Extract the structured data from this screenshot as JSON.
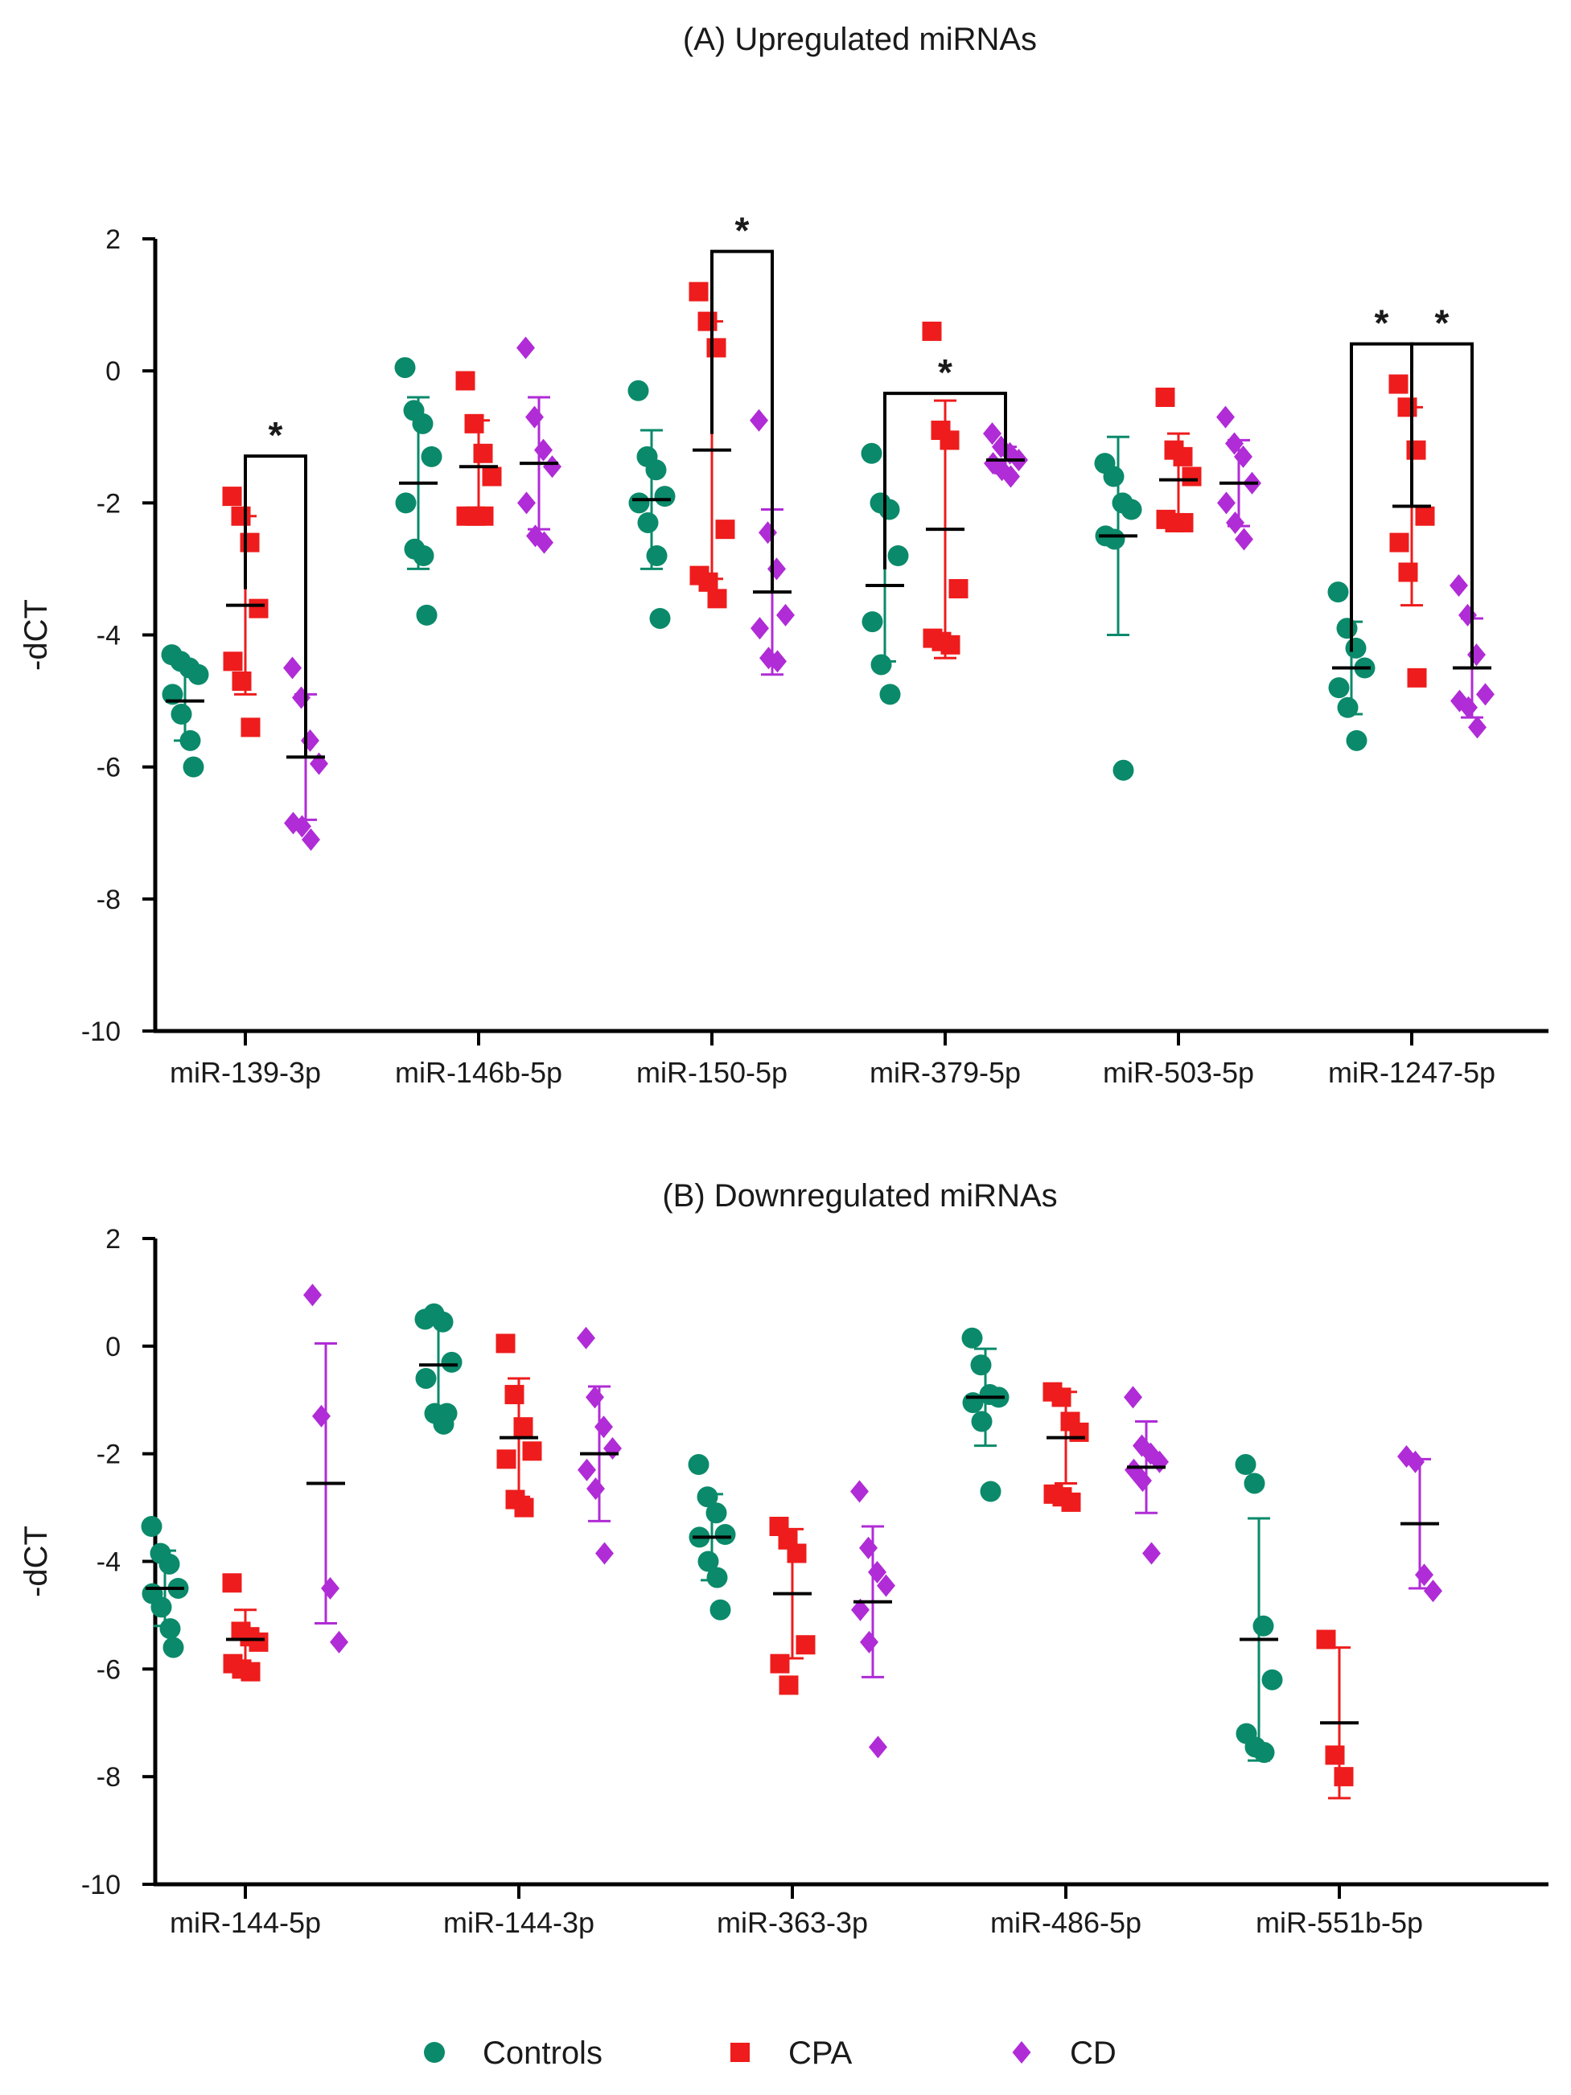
{
  "colors": {
    "Controls": "#0a8a6a",
    "CPA": "#ee1c1c",
    "CD": "#b02cd6",
    "axis": "#000000"
  },
  "legend": [
    {
      "name": "Controls",
      "marker": "circle"
    },
    {
      "name": "CPA",
      "marker": "square"
    },
    {
      "name": "CD",
      "marker": "diamond"
    }
  ],
  "chart_data": [
    {
      "type": "scatter",
      "title": "(A) Upregulated miRNAs",
      "ylabel": "-dCT",
      "ylim": [
        -10,
        2
      ],
      "yticks": [
        2,
        0,
        -2,
        -4,
        -6,
        -8,
        -10
      ],
      "categories": [
        "miR-139-3p",
        "miR-146b-5p",
        "miR-150-5p",
        "miR-379-5p",
        "miR-503-5p",
        "miR-1247-5p"
      ],
      "groups": [
        {
          "Controls": {
            "points": [
              -4.3,
              -4.4,
              -4.5,
              -4.6,
              -4.9,
              -5.2,
              -5.6,
              -6.0
            ],
            "mean": -5.0,
            "sd": 0.6
          },
          "CPA": {
            "points": [
              -1.9,
              -2.2,
              -2.6,
              -3.6,
              -4.4,
              -4.7,
              -5.4
            ],
            "mean": -3.55,
            "sd": 1.35
          },
          "CD": {
            "points": [
              -4.5,
              -4.95,
              -5.6,
              -5.95,
              -6.85,
              -6.9,
              -7.1
            ],
            "mean": -5.85,
            "sd": 0.95
          }
        },
        {
          "Controls": {
            "points": [
              0.05,
              -0.6,
              -0.8,
              -1.3,
              -2.0,
              -2.7,
              -2.8,
              -3.7
            ],
            "mean": -1.7,
            "sd": 1.3
          },
          "CPA": {
            "points": [
              -0.15,
              -0.8,
              -1.25,
              -1.6,
              -2.2,
              -2.2,
              -2.2
            ],
            "mean": -1.45,
            "sd": 0.7
          },
          "CD": {
            "points": [
              0.35,
              -0.7,
              -1.2,
              -1.45,
              -2.0,
              -2.5,
              -2.6
            ],
            "mean": -1.4,
            "sd": 1.0
          }
        },
        {
          "Controls": {
            "points": [
              -0.3,
              -1.3,
              -1.5,
              -1.9,
              -2.0,
              -2.3,
              -2.8,
              -3.75
            ],
            "mean": -1.95,
            "sd": 1.05
          },
          "CPA": {
            "points": [
              1.2,
              0.75,
              0.35,
              -2.4,
              -3.1,
              -3.2,
              -3.45
            ],
            "mean": -1.2,
            "sd": 1.95
          },
          "CD": {
            "points": [
              -0.75,
              -2.45,
              -3.0,
              -3.7,
              -3.9,
              -4.35,
              -4.4
            ],
            "mean": -3.35,
            "sd": 1.25
          }
        },
        {
          "Controls": {
            "points": [
              -1.25,
              -2.0,
              -2.1,
              -2.8,
              -3.8,
              -4.45,
              -4.9
            ],
            "mean": -3.25,
            "sd": 1.15
          },
          "CPA": {
            "points": [
              0.6,
              -0.9,
              -1.05,
              -3.3,
              -4.05,
              -4.1,
              -4.15
            ],
            "mean": -2.4,
            "sd": 1.95
          },
          "CD": {
            "points": [
              -0.95,
              -1.15,
              -1.25,
              -1.35,
              -1.4,
              -1.5,
              -1.6
            ],
            "mean": -1.35,
            "sd": 0.2
          }
        },
        {
          "Controls": {
            "points": [
              -1.4,
              -1.6,
              -2.0,
              -2.1,
              -2.5,
              -2.55,
              -6.05
            ],
            "mean": -2.5,
            "sd": 1.5
          },
          "CPA": {
            "points": [
              -0.4,
              -1.2,
              -1.3,
              -1.6,
              -2.25,
              -2.3,
              -2.3
            ],
            "mean": -1.65,
            "sd": 0.7
          },
          "CD": {
            "points": [
              -0.7,
              -1.1,
              -1.3,
              -1.7,
              -2.0,
              -2.3,
              -2.55
            ],
            "mean": -1.7,
            "sd": 0.65
          }
        },
        {
          "Controls": {
            "points": [
              -3.35,
              -3.9,
              -4.2,
              -4.5,
              -4.8,
              -5.1,
              -5.6
            ],
            "mean": -4.5,
            "sd": 0.7
          },
          "CPA": {
            "points": [
              -0.2,
              -0.55,
              -1.2,
              -2.2,
              -2.6,
              -3.05,
              -4.65
            ],
            "mean": -2.05,
            "sd": 1.5
          },
          "CD": {
            "points": [
              -3.25,
              -3.7,
              -4.3,
              -4.9,
              -5.0,
              -5.1,
              -5.4
            ],
            "mean": -4.5,
            "sd": 0.75
          }
        }
      ],
      "significance": [
        {
          "category": 0,
          "from": "CPA",
          "to": "CD",
          "label": "*"
        },
        {
          "category": 2,
          "from": "CPA",
          "to": "CD",
          "label": "*"
        },
        {
          "category": 3,
          "from": "Controls",
          "to": "CD",
          "label": "*"
        },
        {
          "category": 5,
          "from": "Controls",
          "to": "CPA",
          "label": "*"
        },
        {
          "category": 5,
          "from": "CPA",
          "to": "CD",
          "label": "*"
        }
      ]
    },
    {
      "type": "scatter",
      "title": "(B) Downregulated miRNAs",
      "ylabel": "-dCT",
      "ylim": [
        -10,
        2
      ],
      "yticks": [
        2,
        0,
        -2,
        -4,
        -6,
        -8,
        -10
      ],
      "categories": [
        "miR-144-5p",
        "miR-144-3p",
        "miR-363-3p",
        "miR-486-5p",
        "miR-551b-5p"
      ],
      "groups": [
        {
          "Controls": {
            "points": [
              -3.35,
              -3.85,
              -4.05,
              -4.5,
              -4.6,
              -4.85,
              -5.25,
              -5.6
            ],
            "mean": -4.5,
            "sd": 0.7
          },
          "CPA": {
            "points": [
              -4.4,
              -5.3,
              -5.4,
              -5.5,
              -5.9,
              -6.0,
              -6.05
            ],
            "mean": -5.45,
            "sd": 0.55
          },
          "CD": {
            "points": [
              0.95,
              -1.3,
              -4.5,
              -5.5
            ],
            "mean": -2.55,
            "sd": 2.6
          }
        },
        {
          "Controls": {
            "points": [
              0.5,
              0.6,
              0.45,
              -0.3,
              -0.6,
              -1.25,
              -1.45,
              -1.25
            ],
            "mean": -0.35,
            "sd": 0.8
          },
          "CPA": {
            "points": [
              0.05,
              -0.9,
              -1.5,
              -1.95,
              -2.1,
              -2.85,
              -3.0
            ],
            "mean": -1.7,
            "sd": 1.1
          },
          "CD": {
            "points": [
              0.15,
              -0.95,
              -1.5,
              -1.9,
              -2.3,
              -2.65,
              -3.85
            ],
            "mean": -2.0,
            "sd": 1.25
          }
        },
        {
          "Controls": {
            "points": [
              -2.2,
              -2.8,
              -3.1,
              -3.5,
              -3.55,
              -4.0,
              -4.3,
              -4.9
            ],
            "mean": -3.55,
            "sd": 0.8
          },
          "CPA": {
            "points": [
              -3.35,
              -3.6,
              -3.85,
              -5.55,
              -5.9,
              -6.3
            ],
            "mean": -4.6,
            "sd": 1.2
          },
          "CD": {
            "points": [
              -2.7,
              -3.75,
              -4.2,
              -4.45,
              -4.9,
              -5.5,
              -7.45
            ],
            "mean": -4.75,
            "sd": 1.4
          }
        },
        {
          "Controls": {
            "points": [
              0.15,
              -0.35,
              -0.9,
              -0.95,
              -1.05,
              -1.4,
              -2.7
            ],
            "mean": -0.95,
            "sd": 0.9
          },
          "CPA": {
            "points": [
              -0.85,
              -0.95,
              -1.4,
              -1.6,
              -2.75,
              -2.8,
              -2.9
            ],
            "mean": -1.7,
            "sd": 0.85
          },
          "CD": {
            "points": [
              -0.95,
              -1.85,
              -2.0,
              -2.15,
              -2.3,
              -2.5,
              -3.85
            ],
            "mean": -2.25,
            "sd": 0.85
          }
        },
        {
          "Controls": {
            "points": [
              -2.2,
              -2.55,
              -5.2,
              -6.2,
              -7.2,
              -7.45,
              -7.55
            ],
            "mean": -5.45,
            "sd": 2.25
          },
          "CPA": {
            "points": [
              -5.45,
              -7.6,
              -8.0
            ],
            "mean": -7.0,
            "sd": 1.4
          },
          "CD": {
            "points": [
              -2.05,
              -2.15,
              -4.25,
              -4.55
            ],
            "mean": -3.3,
            "sd": 1.2
          }
        }
      ],
      "significance": []
    }
  ]
}
